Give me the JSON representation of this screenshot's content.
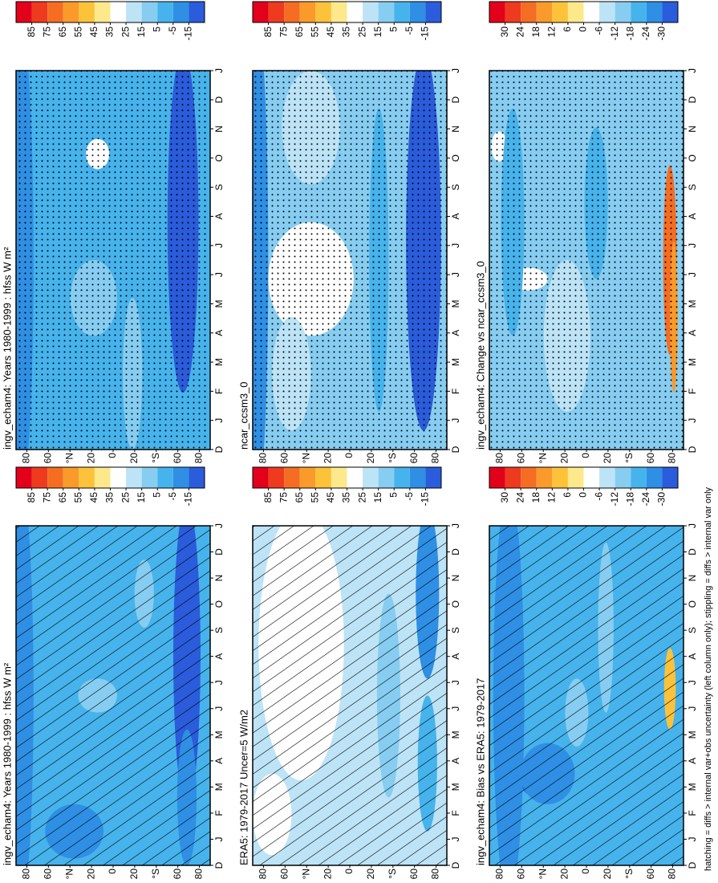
{
  "chart_data": [
    {
      "type": "contour",
      "title": "ingv_echam4: Years 1980-1999 : hfss W m²",
      "overlay": "hatching",
      "categories": [
        "D",
        "J",
        "F",
        "M",
        "A",
        "M",
        "J",
        "J",
        "A",
        "S",
        "O",
        "N",
        "D",
        "J"
      ],
      "ylim": [
        90,
        -90
      ],
      "yticks": [
        80,
        60,
        {
          "value": 40,
          "label": "°N"
        },
        20,
        0,
        {
          "value": -20,
          "label": "20"
        },
        {
          "value": -40,
          "label": "°S"
        },
        {
          "value": -60,
          "label": "60"
        },
        {
          "value": -80,
          "label": "80"
        }
      ],
      "colorbar": [
        85,
        75,
        65,
        55,
        45,
        35,
        25,
        15,
        5,
        -5,
        -15
      ],
      "colors": [
        "#e3001b",
        "#ee3a1f",
        "#f46d22",
        "#f99a2b",
        "#fcc23a",
        "#fde98c",
        "#ffffff",
        "#bde3f6",
        "#86cdf1",
        "#46b3ec",
        "#2e8fe4",
        "#2a5cdb"
      ]
    },
    {
      "type": "contour",
      "title": "ingv_echam4: Years 1980-1999 : hfss W m²",
      "overlay": "stippling",
      "categories": [
        "D",
        "J",
        "F",
        "M",
        "A",
        "M",
        "J",
        "J",
        "A",
        "S",
        "O",
        "N",
        "D",
        "J"
      ],
      "ylim": [
        90,
        -90
      ],
      "yticks": [
        80,
        60,
        {
          "value": 40,
          "label": "°N"
        },
        20,
        0,
        {
          "value": -20,
          "label": "20"
        },
        {
          "value": -40,
          "label": "°S"
        },
        {
          "value": -60,
          "label": "60"
        },
        {
          "value": -80,
          "label": "80"
        }
      ],
      "colorbar": [
        85,
        75,
        65,
        55,
        45,
        35,
        25,
        15,
        5,
        -5,
        -15
      ],
      "colors": [
        "#e3001b",
        "#ee3a1f",
        "#f46d22",
        "#f99a2b",
        "#fcc23a",
        "#fde98c",
        "#ffffff",
        "#bde3f6",
        "#86cdf1",
        "#46b3ec",
        "#2e8fe4",
        "#2a5cdb"
      ]
    },
    {
      "type": "contour",
      "title": "ERA5: 1979-2017 Uncer=5 W/m2",
      "overlay": "hatching",
      "categories": [
        "D",
        "J",
        "F",
        "M",
        "A",
        "M",
        "J",
        "J",
        "A",
        "S",
        "O",
        "N",
        "D",
        "J"
      ],
      "ylim": [
        90,
        -90
      ],
      "yticks": [
        80,
        60,
        {
          "value": 40,
          "label": "°N"
        },
        20,
        0,
        {
          "value": -20,
          "label": "20"
        },
        {
          "value": -40,
          "label": "°S"
        },
        {
          "value": -60,
          "label": "60"
        },
        {
          "value": -80,
          "label": "80"
        }
      ],
      "colorbar": [
        85,
        75,
        65,
        55,
        45,
        35,
        25,
        15,
        5,
        -5,
        -15
      ],
      "colors": [
        "#e3001b",
        "#ee3a1f",
        "#f46d22",
        "#f99a2b",
        "#fcc23a",
        "#fde98c",
        "#ffffff",
        "#bde3f6",
        "#86cdf1",
        "#46b3ec",
        "#2e8fe4",
        "#2a5cdb"
      ]
    },
    {
      "type": "contour",
      "title": "ncar_ccsm3_0",
      "overlay": "stippling",
      "categories": [
        "D",
        "J",
        "F",
        "M",
        "A",
        "M",
        "J",
        "J",
        "A",
        "S",
        "O",
        "N",
        "D",
        "J"
      ],
      "ylim": [
        90,
        -90
      ],
      "yticks": [
        80,
        60,
        {
          "value": 40,
          "label": "°N"
        },
        20,
        0,
        {
          "value": -20,
          "label": "20"
        },
        {
          "value": -40,
          "label": "°S"
        },
        {
          "value": -60,
          "label": "60"
        },
        {
          "value": -80,
          "label": "80"
        }
      ],
      "colorbar": [
        85,
        75,
        65,
        55,
        45,
        35,
        25,
        15,
        5,
        -5,
        -15
      ],
      "colors": [
        "#e3001b",
        "#ee3a1f",
        "#f46d22",
        "#f99a2b",
        "#fcc23a",
        "#fde98c",
        "#ffffff",
        "#bde3f6",
        "#86cdf1",
        "#46b3ec",
        "#2e8fe4",
        "#2a5cdb"
      ]
    },
    {
      "type": "contour",
      "title": "ingv_echam4: Bias vs ERA5: 1979-2017",
      "overlay": "hatching",
      "categories": [
        "D",
        "J",
        "F",
        "M",
        "A",
        "M",
        "J",
        "J",
        "A",
        "S",
        "O",
        "N",
        "D",
        "J"
      ],
      "ylim": [
        90,
        -90
      ],
      "yticks": [
        80,
        60,
        {
          "value": 40,
          "label": "°N"
        },
        20,
        0,
        {
          "value": -20,
          "label": "20"
        },
        {
          "value": -40,
          "label": "°S"
        },
        {
          "value": -60,
          "label": "60"
        },
        {
          "value": -80,
          "label": "80"
        }
      ],
      "colorbar": [
        30,
        24,
        18,
        12,
        6,
        0,
        -6,
        -12,
        -18,
        -24,
        -30
      ],
      "colors": [
        "#e3001b",
        "#ee3a1f",
        "#f46d22",
        "#f99a2b",
        "#fcc23a",
        "#fde98c",
        "#ffffff",
        "#bde3f6",
        "#86cdf1",
        "#46b3ec",
        "#2e8fe4",
        "#2a5cdb"
      ]
    },
    {
      "type": "contour",
      "title": "ingv_echam4: Change vs ncar_ccsm3_0",
      "overlay": "stippling",
      "categories": [
        "D",
        "J",
        "F",
        "M",
        "A",
        "M",
        "J",
        "J",
        "A",
        "S",
        "O",
        "N",
        "D",
        "J"
      ],
      "ylim": [
        90,
        -90
      ],
      "yticks": [
        80,
        60,
        {
          "value": 40,
          "label": "°N"
        },
        20,
        0,
        {
          "value": -20,
          "label": "20"
        },
        {
          "value": -40,
          "label": "°S"
        },
        {
          "value": -60,
          "label": "60"
        },
        {
          "value": -80,
          "label": "80"
        }
      ],
      "colorbar": [
        30,
        24,
        18,
        12,
        6,
        0,
        -6,
        -12,
        -18,
        -24,
        -30
      ],
      "colors": [
        "#e3001b",
        "#ee3a1f",
        "#f46d22",
        "#f99a2b",
        "#fcc23a",
        "#fde98c",
        "#ffffff",
        "#bde3f6",
        "#86cdf1",
        "#46b3ec",
        "#2e8fe4",
        "#2a5cdb"
      ]
    }
  ],
  "footnote": "hatching = diffs > internal var+obs uncertainty (left column only); stippling = diffs > internal var only"
}
